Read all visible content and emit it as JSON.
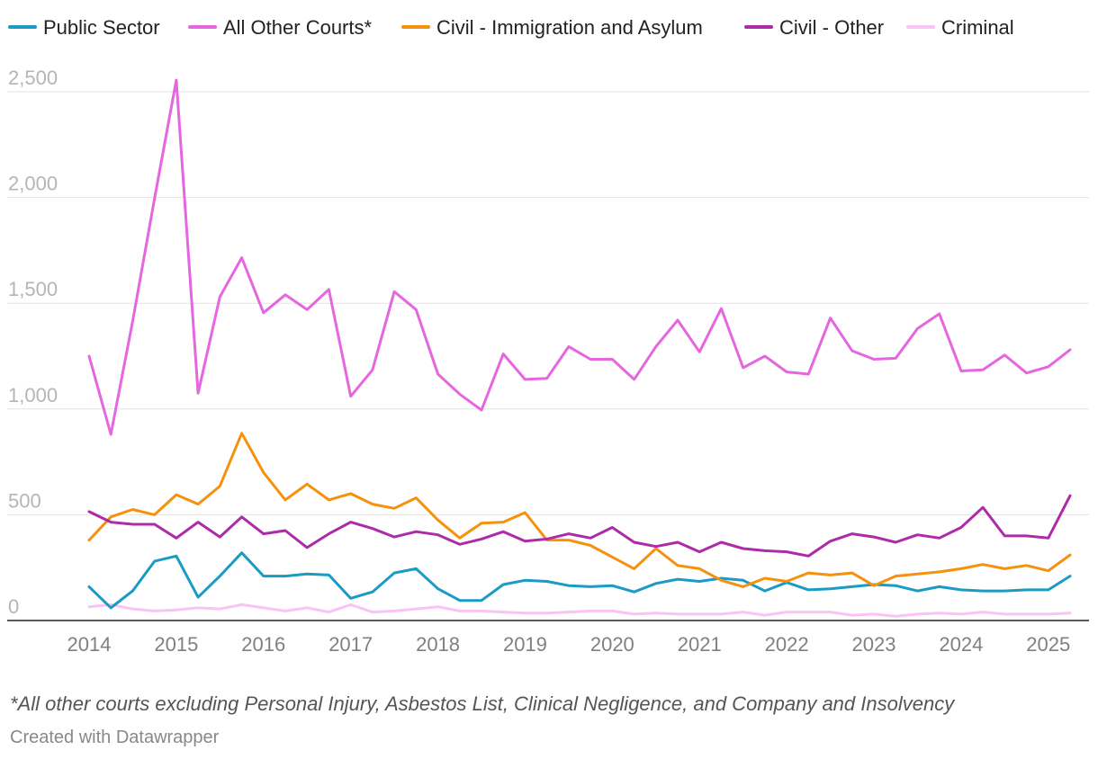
{
  "chart_data": {
    "type": "line",
    "title": "",
    "xlabel": "",
    "ylabel": "",
    "ylim": [
      0,
      2500
    ],
    "xlim": [
      2014.0,
      2025.25
    ],
    "y_ticks": [
      {
        "value": 0,
        "label": "0"
      },
      {
        "value": 500,
        "label": "500"
      },
      {
        "value": 1000,
        "label": "1,000"
      },
      {
        "value": 1500,
        "label": "1,500"
      },
      {
        "value": 2000,
        "label": "2,000"
      },
      {
        "value": 2500,
        "label": "2,500"
      }
    ],
    "x_ticks": [
      {
        "value": 2014,
        "label": "2014"
      },
      {
        "value": 2015,
        "label": "2015"
      },
      {
        "value": 2016,
        "label": "2016"
      },
      {
        "value": 2017,
        "label": "2017"
      },
      {
        "value": 2018,
        "label": "2018"
      },
      {
        "value": 2019,
        "label": "2019"
      },
      {
        "value": 2020,
        "label": "2020"
      },
      {
        "value": 2021,
        "label": "2021"
      },
      {
        "value": 2022,
        "label": "2022"
      },
      {
        "value": 2023,
        "label": "2023"
      },
      {
        "value": 2024,
        "label": "2024"
      },
      {
        "value": 2025,
        "label": "2025"
      }
    ],
    "x": [
      2014.0,
      2014.25,
      2014.5,
      2014.75,
      2015.0,
      2015.25,
      2015.5,
      2015.75,
      2016.0,
      2016.25,
      2016.5,
      2016.75,
      2017.0,
      2017.25,
      2017.5,
      2017.75,
      2018.0,
      2018.25,
      2018.5,
      2018.75,
      2019.0,
      2019.25,
      2019.5,
      2019.75,
      2020.0,
      2020.25,
      2020.5,
      2020.75,
      2021.0,
      2021.25,
      2021.5,
      2021.75,
      2022.0,
      2022.25,
      2022.5,
      2022.75,
      2023.0,
      2023.25,
      2023.5,
      2023.75,
      2024.0,
      2024.25,
      2024.5,
      2024.75,
      2025.0,
      2025.25
    ],
    "grid": true,
    "legend_position": "top-left",
    "series": [
      {
        "name": "Public Sector",
        "color": "#1a9bc4",
        "values": [
          160,
          60,
          140,
          280,
          305,
          110,
          210,
          320,
          210,
          210,
          220,
          215,
          105,
          135,
          225,
          245,
          150,
          95,
          95,
          170,
          190,
          185,
          165,
          160,
          165,
          135,
          175,
          195,
          185,
          200,
          190,
          140,
          180,
          145,
          150,
          160,
          170,
          165,
          140,
          160,
          145,
          140,
          140,
          145,
          145,
          210
        ]
      },
      {
        "name": "All Other Courts*",
        "color": "#e566df",
        "values": [
          1250,
          880,
          1415,
          1995,
          2555,
          1075,
          1530,
          1715,
          1455,
          1540,
          1470,
          1565,
          1060,
          1185,
          1555,
          1470,
          1165,
          1070,
          995,
          1260,
          1140,
          1145,
          1295,
          1235,
          1235,
          1140,
          1295,
          1420,
          1270,
          1475,
          1195,
          1250,
          1175,
          1165,
          1430,
          1275,
          1235,
          1240,
          1380,
          1450,
          1180,
          1185,
          1255,
          1170,
          1200,
          1280
        ]
      },
      {
        "name": "Civil - Immigration and Asylum",
        "color": "#f5910c",
        "values": [
          380,
          490,
          525,
          500,
          595,
          550,
          635,
          885,
          700,
          570,
          645,
          570,
          600,
          550,
          530,
          580,
          475,
          390,
          460,
          465,
          510,
          380,
          380,
          355,
          300,
          245,
          340,
          260,
          245,
          190,
          160,
          200,
          185,
          225,
          215,
          225,
          165,
          210,
          220,
          230,
          245,
          265,
          245,
          260,
          235,
          310
        ]
      },
      {
        "name": "Civil - Other",
        "color": "#ad2ba8",
        "values": [
          515,
          465,
          455,
          455,
          390,
          465,
          395,
          490,
          410,
          425,
          345,
          410,
          465,
          435,
          395,
          420,
          405,
          360,
          385,
          420,
          375,
          385,
          410,
          390,
          440,
          370,
          350,
          370,
          325,
          370,
          340,
          330,
          325,
          305,
          375,
          410,
          395,
          370,
          405,
          390,
          440,
          535,
          400,
          400,
          390,
          590
        ]
      },
      {
        "name": "Criminal",
        "color": "#f9c3f4",
        "values": [
          65,
          75,
          55,
          45,
          50,
          60,
          55,
          75,
          60,
          45,
          60,
          40,
          75,
          40,
          45,
          55,
          65,
          45,
          45,
          40,
          35,
          35,
          40,
          45,
          45,
          30,
          35,
          30,
          30,
          30,
          40,
          25,
          40,
          40,
          40,
          25,
          30,
          20,
          30,
          35,
          30,
          40,
          30,
          30,
          30,
          35
        ]
      }
    ],
    "footnote": "*All other courts excluding Personal Injury, Asbestos List, Clinical Negligence, and Company and Insolvency",
    "credit": "Created with Datawrapper"
  }
}
